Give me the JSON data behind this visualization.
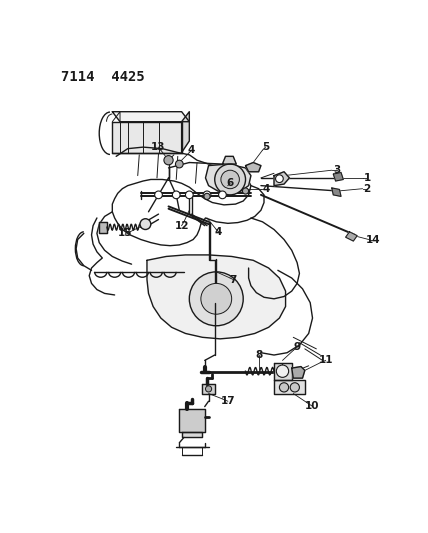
{
  "title": "7114  4425",
  "bg_color": "#ffffff",
  "line_color": "#1a1a1a",
  "title_fontsize": 10,
  "figsize": [
    4.28,
    5.33
  ],
  "dpi": 100
}
